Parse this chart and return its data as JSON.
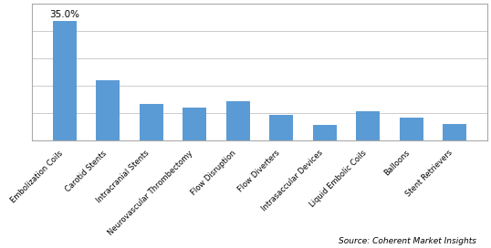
{
  "categories": [
    "Embolization Coils",
    "Carotid Stents",
    "Intracranial Stents",
    "Neurovascular Thrombectomy",
    "Flow Disruption",
    "Flow Diverters",
    "Intrasaccular Devices",
    "Liquid Embolic Coils",
    "Balloons",
    "Stent Retrievers"
  ],
  "values": [
    35.0,
    17.5,
    10.5,
    9.5,
    11.5,
    7.5,
    4.5,
    8.5,
    6.5,
    4.8
  ],
  "bar_color": "#5B9BD5",
  "annotation_label": "35.0%",
  "annotation_index": 0,
  "source_text": "Source: Coherent Market Insights",
  "background_color": "#FFFFFF",
  "grid_color": "#CCCCCC",
  "ylim": [
    0,
    40
  ],
  "border_color": "#AAAAAA"
}
